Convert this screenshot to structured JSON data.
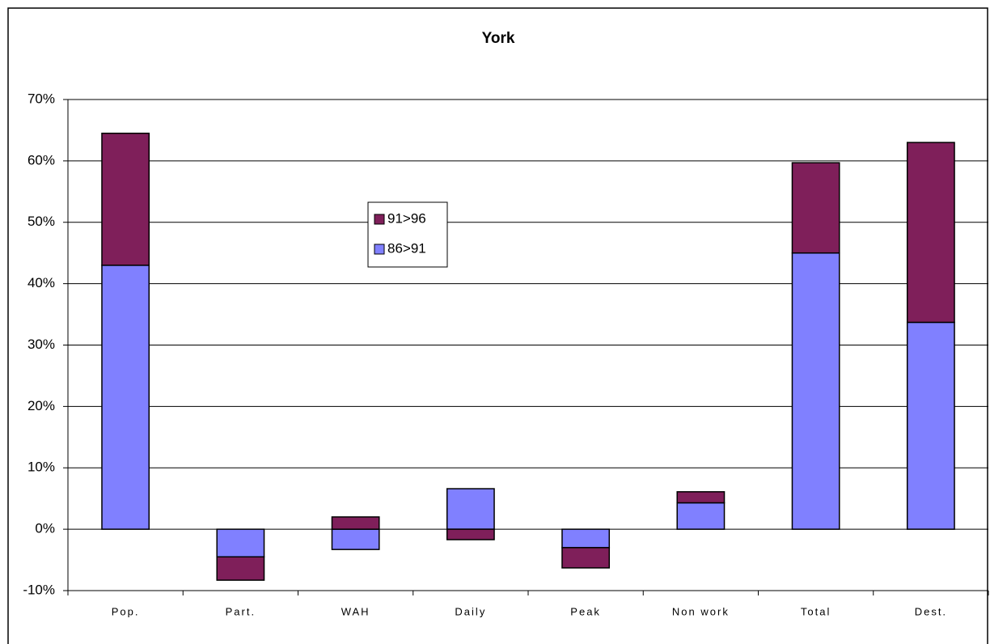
{
  "chart_data": {
    "type": "stacked-bar",
    "title": "York",
    "categories": [
      "Pop.",
      "Part.",
      "WAH",
      "Daily",
      "Peak",
      "Non work",
      "Total",
      "Dest."
    ],
    "series": [
      {
        "name": "86>91",
        "color": "#8080ff",
        "values": [
          43,
          -4.5,
          -3.3,
          6.6,
          -3.0,
          4.3,
          45,
          33.7
        ]
      },
      {
        "name": "91>96",
        "color": "#7f1f5a",
        "values": [
          21.5,
          -3.8,
          2.0,
          -1.7,
          -3.3,
          1.8,
          14.7,
          29.3
        ]
      }
    ],
    "ylim": [
      -10,
      70
    ],
    "yticks": [
      {
        "value": -10,
        "label": "-10%"
      },
      {
        "value": 0,
        "label": "0%"
      },
      {
        "value": 10,
        "label": "10%"
      },
      {
        "value": 20,
        "label": "20%"
      },
      {
        "value": 30,
        "label": "30%"
      },
      {
        "value": 40,
        "label": "40%"
      },
      {
        "value": 50,
        "label": "50%"
      },
      {
        "value": 60,
        "label": "60%"
      },
      {
        "value": 70,
        "label": "70%"
      }
    ],
    "grid": true
  }
}
